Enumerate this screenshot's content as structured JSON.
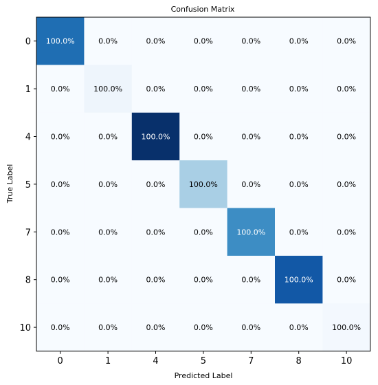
{
  "chart_data": {
    "type": "heatmap",
    "title": "Confusion Matrix",
    "xlabel": "Predicted Label",
    "ylabel": "True Label",
    "x_categories": [
      "0",
      "1",
      "4",
      "5",
      "7",
      "8",
      "10"
    ],
    "y_categories": [
      "0",
      "1",
      "4",
      "5",
      "7",
      "8",
      "10"
    ],
    "values": [
      [
        100.0,
        0.0,
        0.0,
        0.0,
        0.0,
        0.0,
        0.0
      ],
      [
        0.0,
        100.0,
        0.0,
        0.0,
        0.0,
        0.0,
        0.0
      ],
      [
        0.0,
        0.0,
        100.0,
        0.0,
        0.0,
        0.0,
        0.0
      ],
      [
        0.0,
        0.0,
        0.0,
        100.0,
        0.0,
        0.0,
        0.0
      ],
      [
        0.0,
        0.0,
        0.0,
        0.0,
        100.0,
        0.0,
        0.0
      ],
      [
        0.0,
        0.0,
        0.0,
        0.0,
        0.0,
        100.0,
        0.0
      ],
      [
        0.0,
        0.0,
        0.0,
        0.0,
        0.0,
        0.0,
        100.0
      ]
    ],
    "cell_labels": [
      [
        "100.0%",
        "0.0%",
        "0.0%",
        "0.0%",
        "0.0%",
        "0.0%",
        "0.0%"
      ],
      [
        "0.0%",
        "100.0%",
        "0.0%",
        "0.0%",
        "0.0%",
        "0.0%",
        "0.0%"
      ],
      [
        "0.0%",
        "0.0%",
        "100.0%",
        "0.0%",
        "0.0%",
        "0.0%",
        "0.0%"
      ],
      [
        "0.0%",
        "0.0%",
        "0.0%",
        "100.0%",
        "0.0%",
        "0.0%",
        "0.0%"
      ],
      [
        "0.0%",
        "0.0%",
        "0.0%",
        "0.0%",
        "100.0%",
        "0.0%",
        "0.0%"
      ],
      [
        "0.0%",
        "0.0%",
        "0.0%",
        "0.0%",
        "0.0%",
        "100.0%",
        "0.0%"
      ],
      [
        "0.0%",
        "0.0%",
        "0.0%",
        "0.0%",
        "0.0%",
        "0.0%",
        "100.0%"
      ]
    ],
    "colormap": "Blues",
    "background_color": "#f7fbff",
    "diagonal_colors": [
      "#1f6eb3",
      "#eef5fc",
      "#08306b",
      "#a9cfe5",
      "#3d8dc4",
      "#1258a6",
      "#f3f8fe"
    ],
    "grid": false,
    "legend": false
  }
}
